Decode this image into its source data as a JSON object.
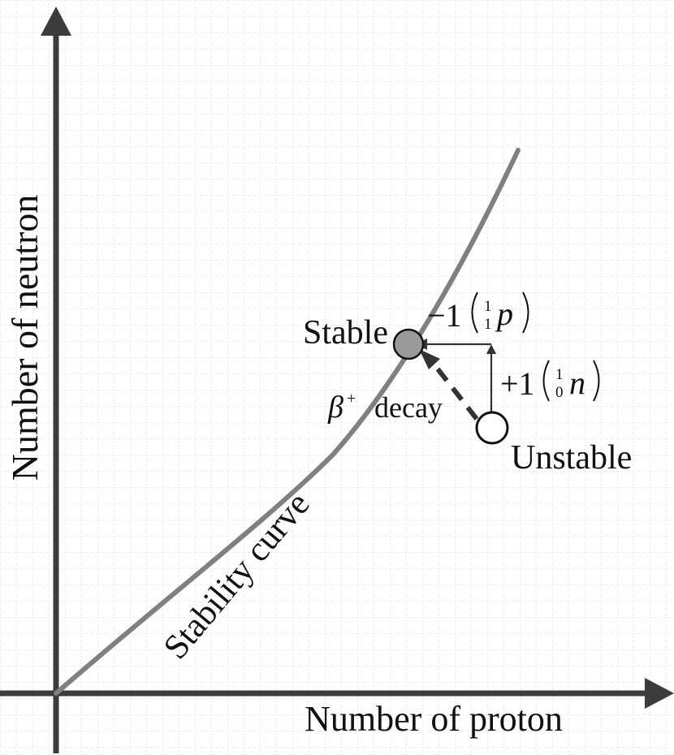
{
  "axes": {
    "y_label": "Number of neutron",
    "x_label": "Number of proton"
  },
  "curve": {
    "label": "Stability curve"
  },
  "points": {
    "stable_label": "Stable",
    "unstable_label": "Unstable"
  },
  "annotations": {
    "proton_coef": "−1",
    "proton_mass": "1",
    "proton_charge": "1",
    "proton_symbol": "p",
    "neutron_coef": "+1",
    "neutron_mass": "1",
    "neutron_charge": "0",
    "neutron_symbol": "n",
    "beta_symbol": "β",
    "beta_sup": "+",
    "beta_word": "decay"
  },
  "colors": {
    "axis": "#3c3c3c",
    "curve": "#808080",
    "stable_fill": "#9a9a9a",
    "grid": "#d6d6d6"
  }
}
